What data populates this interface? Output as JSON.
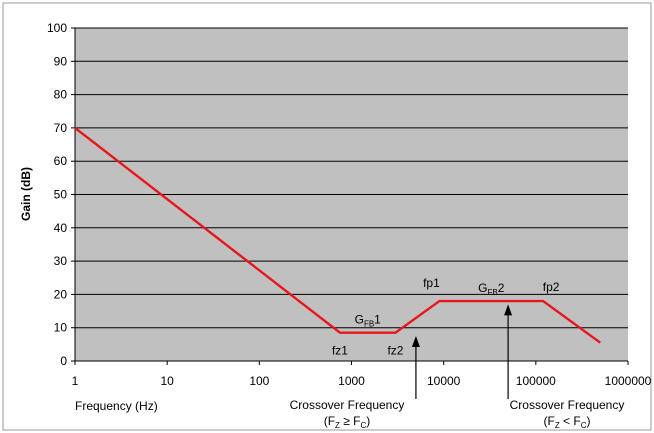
{
  "chart_data": {
    "type": "line",
    "x_scale": "log",
    "xlim": [
      1,
      1000000
    ],
    "ylim": [
      0,
      100
    ],
    "y_ticks": [
      0,
      10,
      20,
      30,
      40,
      50,
      60,
      70,
      80,
      90,
      100
    ],
    "x_ticks": [
      1,
      10,
      100,
      1000,
      10000,
      100000,
      1000000
    ],
    "x_tick_labels": [
      "1",
      "10",
      "100",
      "1000",
      "10000",
      "100000",
      "1000000"
    ],
    "xlabel": "Frequency (Hz)",
    "ylabel": "Gain (dB)",
    "grid": "horizontal",
    "series": [
      {
        "color": "#e8151c",
        "x": [
          1,
          750,
          3000,
          9000,
          120000,
          500000
        ],
        "y": [
          70,
          8.5,
          8.5,
          18,
          18,
          5.5
        ]
      }
    ],
    "point_labels": [
      {
        "id": "fz1",
        "text": "fz1",
        "x": 750,
        "y": 8.5
      },
      {
        "id": "fz2",
        "text": "fz2",
        "x": 3000,
        "y": 8.5
      },
      {
        "id": "fp1",
        "text": "fp1",
        "x": 9000,
        "y": 18
      },
      {
        "id": "fp2",
        "text": "fp2",
        "x": 120000,
        "y": 18
      }
    ],
    "segment_labels": [
      {
        "id": "gfb1",
        "main": "G",
        "sub": "FB",
        "suffix": "1"
      },
      {
        "id": "gfb2",
        "main": "G",
        "sub": "FB",
        "suffix": "2"
      }
    ],
    "annotations": [
      {
        "id": "crossover-1",
        "line1": "Crossover Frequency",
        "line2": {
          "open": "(F",
          "sub1": "Z",
          "mid": " ≥ F",
          "sub2": "C",
          "close": ")"
        },
        "x": 5000,
        "y": 7.5
      },
      {
        "id": "crossover-2",
        "line1": "Crossover Frequency",
        "line2": {
          "open": "(F",
          "sub1": "Z",
          "mid": " < F",
          "sub2": "C",
          "close": ")"
        },
        "x": 50000,
        "y": 17
      }
    ],
    "colors": {
      "plot_background": "#c0c0c0",
      "gridline": "#000000",
      "line": "#e8151c",
      "frame": "#9a9a9a"
    }
  }
}
